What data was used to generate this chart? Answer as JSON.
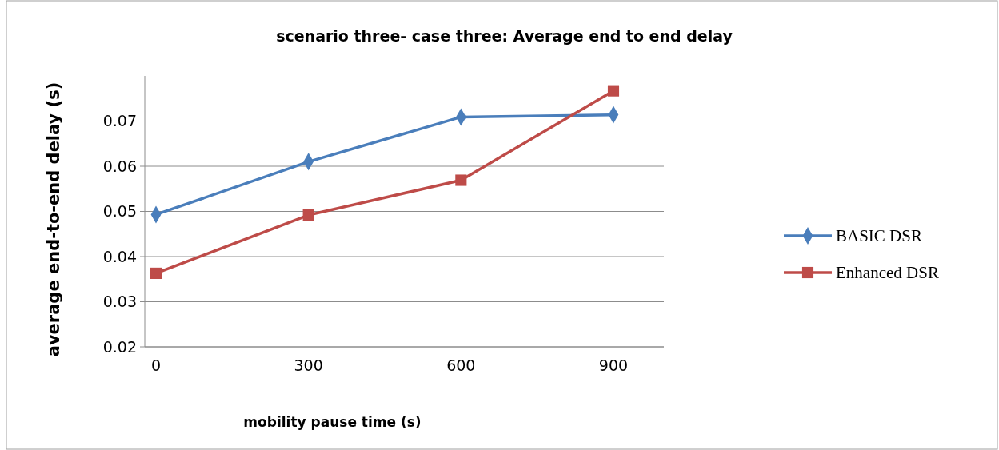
{
  "chart_data": {
    "type": "line",
    "title": "scenario three- case three: Average end to end delay",
    "xlabel": "mobility pause  time (s)",
    "ylabel": "average end-to-end delay (s)",
    "categories": [
      "0",
      "300",
      "600",
      "900"
    ],
    "ylim": [
      0.02,
      0.08
    ],
    "yticks": [
      0.02,
      0.03,
      0.04,
      0.05,
      0.06,
      0.07
    ],
    "series": [
      {
        "name": "BASIC DSR",
        "color": "#4a7ebb",
        "marker": "diamond",
        "values": [
          0.0493,
          0.061,
          0.0709,
          0.0714
        ]
      },
      {
        "name": "Enhanced DSR",
        "color": "#be4b48",
        "marker": "square",
        "values": [
          0.0363,
          0.0492,
          0.0569,
          0.0767
        ]
      }
    ],
    "grid": "y",
    "legend": "right",
    "line_style": "solid"
  }
}
